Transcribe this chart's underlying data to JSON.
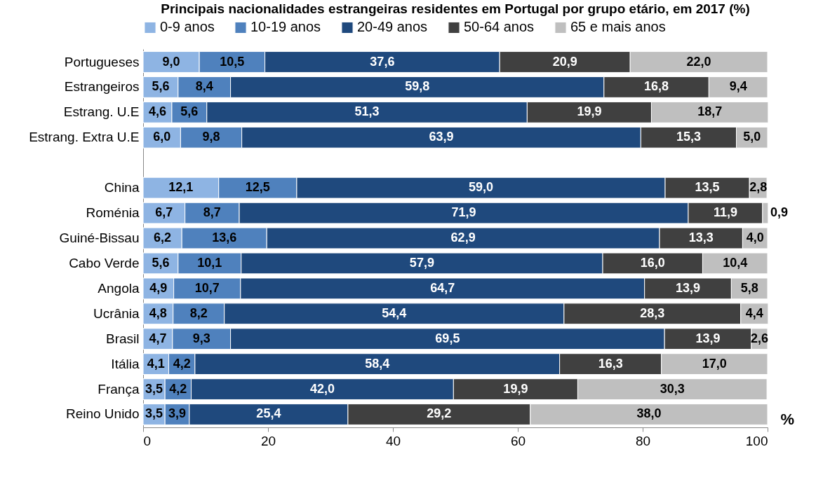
{
  "chart_data": {
    "type": "bar",
    "orientation": "horizontal",
    "stacked": true,
    "title": "Principais nacionalidades estrangeiras residentes em Portugal por grupo etário, em 2017 (%)",
    "xlabel": "%",
    "categories": [
      "Portugueses",
      "Estrangeiros",
      "Estrang. U.E",
      "Estrang. Extra U.E",
      null,
      "China",
      "Roménia",
      "Guiné-Bissau",
      "Cabo Verde",
      "Angola",
      "Ucrânia",
      "Brasil",
      "Itália",
      "França",
      "Reino Unido"
    ],
    "series": [
      {
        "name": "0-9 anos",
        "color": "#8eb4e3",
        "values": [
          9.0,
          5.6,
          4.6,
          6.0,
          null,
          12.1,
          6.7,
          6.2,
          5.6,
          4.9,
          4.8,
          4.7,
          4.1,
          3.5,
          3.5
        ],
        "value_labels": [
          "9,0",
          "5,6",
          "4,6",
          "6,0",
          null,
          "12,1",
          "6,7",
          "6,2",
          "5,6",
          "4,9",
          "4,8",
          "4,7",
          "4,1",
          "3,5",
          "3,5"
        ]
      },
      {
        "name": "10-19 anos",
        "color": "#4f81bd",
        "values": [
          10.5,
          8.4,
          5.6,
          9.8,
          null,
          12.5,
          8.7,
          13.6,
          10.1,
          10.7,
          8.2,
          9.3,
          4.2,
          4.2,
          3.9
        ],
        "value_labels": [
          "10,5",
          "8,4",
          "5,6",
          "9,8",
          null,
          "12,5",
          "8,7",
          "13,6",
          "10,1",
          "10,7",
          "8,2",
          "9,3",
          "4,2",
          "4,2",
          "3,9"
        ]
      },
      {
        "name": "20-49 anos",
        "color": "#1f497d",
        "values": [
          37.6,
          59.8,
          51.3,
          63.9,
          null,
          59.0,
          71.9,
          62.9,
          57.9,
          64.7,
          54.4,
          69.5,
          58.4,
          42.0,
          25.4
        ],
        "value_labels": [
          "37,6",
          "59,8",
          "51,3",
          "63,9",
          null,
          "59,0",
          "71,9",
          "62,9",
          "57,9",
          "64,7",
          "54,4",
          "69,5",
          "58,4",
          "42,0",
          "25,4"
        ]
      },
      {
        "name": "50-64 anos",
        "color": "#404040",
        "values": [
          20.9,
          16.8,
          19.9,
          15.3,
          null,
          13.5,
          11.9,
          13.3,
          16.0,
          13.9,
          28.3,
          13.9,
          16.3,
          19.9,
          29.2
        ],
        "value_labels": [
          "20,9",
          "16,8",
          "19,9",
          "15,3",
          null,
          "13,5",
          "11,9",
          "13,3",
          "16,0",
          "13,9",
          "28,3",
          "13,9",
          "16,3",
          "19,9",
          "29,2"
        ]
      },
      {
        "name": "65 e mais anos",
        "color": "#bfbfbf",
        "values": [
          22.0,
          9.4,
          18.7,
          5.0,
          null,
          2.8,
          0.9,
          4.0,
          10.4,
          5.8,
          4.4,
          2.6,
          17.0,
          30.3,
          38.0
        ],
        "value_labels": [
          "22,0",
          "9,4",
          "18,7",
          "5,0",
          null,
          "2,8",
          "0,9",
          "4,0",
          "10,4",
          "5,8",
          "4,4",
          "2,6",
          "17,0",
          "30,3",
          "38,0"
        ]
      }
    ],
    "xlim": [
      0,
      100
    ],
    "xticks": [
      0,
      20,
      40,
      60,
      80,
      100
    ],
    "legend": "top",
    "grid": false
  }
}
